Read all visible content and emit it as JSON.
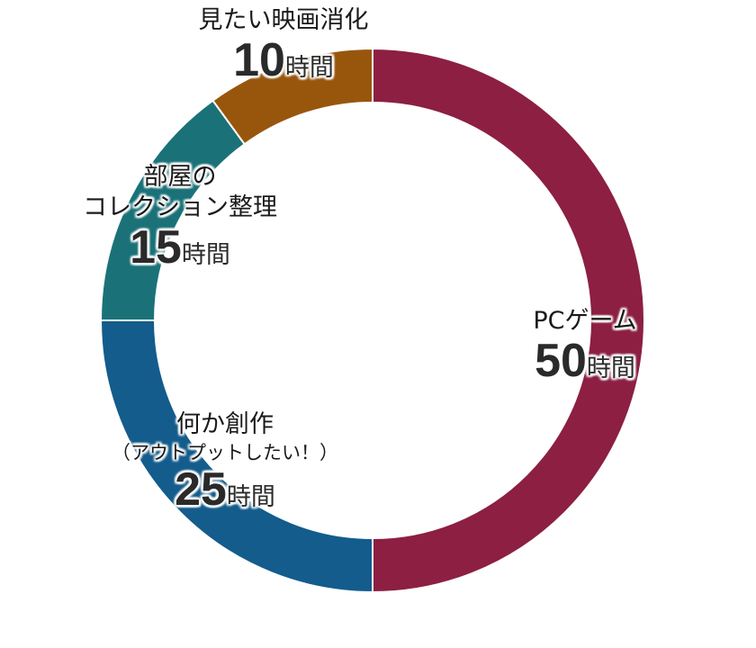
{
  "chart_data": {
    "type": "pie",
    "variant": "donut",
    "unit": "時間",
    "categories": [
      "PCゲーム",
      "何か創作（アウトプットしたい！）",
      "部屋のコレクション整理",
      "見たい映画消化"
    ],
    "values": [
      50,
      25,
      15,
      10
    ],
    "colors": [
      "#8c1f42",
      "#135c8c",
      "#1a7278",
      "#98560d"
    ],
    "start_angle_deg": 0,
    "direction": "clockwise",
    "legend": "none",
    "slices": [
      {
        "label_lines": [
          "PCゲーム"
        ],
        "value": 50,
        "unit": "時間",
        "color": "#8c1f42"
      },
      {
        "label_lines": [
          "何か創作",
          "（アウトプットしたい！）"
        ],
        "value": 25,
        "unit": "時間",
        "color": "#135c8c"
      },
      {
        "label_lines": [
          "部屋の",
          "コレクション整理"
        ],
        "value": 15,
        "unit": "時間",
        "color": "#1a7278"
      },
      {
        "label_lines": [
          "見たい映画消化"
        ],
        "value": 10,
        "unit": "時間",
        "color": "#98560d"
      }
    ]
  }
}
